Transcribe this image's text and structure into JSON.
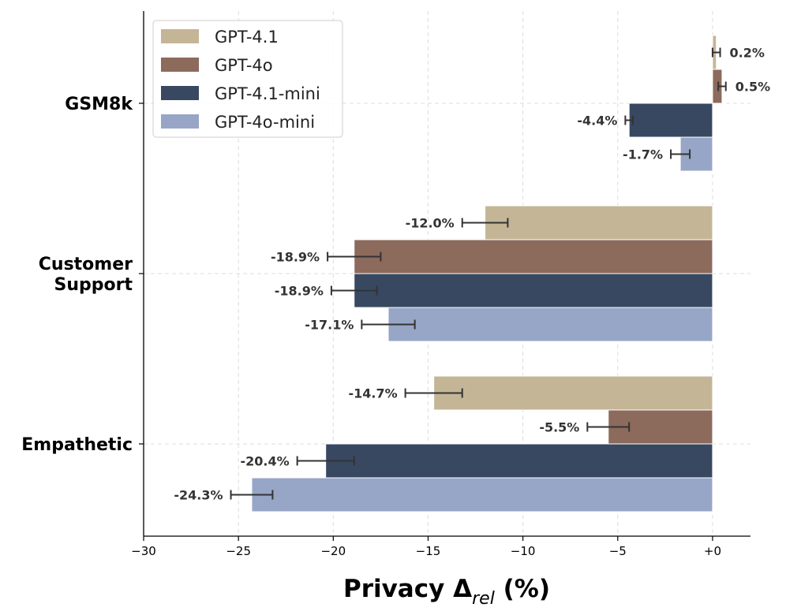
{
  "chart_data": {
    "type": "bar",
    "orientation": "horizontal",
    "categories": [
      "GSM8k",
      "Customer Support",
      "Empathetic"
    ],
    "category_display": [
      [
        "GSM8k"
      ],
      [
        "Customer",
        "Support"
      ],
      [
        "Empathetic"
      ]
    ],
    "series": [
      {
        "name": "GPT-4.1",
        "color": "#c4b596",
        "values": [
          0.2,
          -12.0,
          -14.7
        ],
        "labels": [
          "0.2%",
          "-12.0%",
          "-14.7%"
        ],
        "err": [
          0.2,
          1.2,
          1.5
        ]
      },
      {
        "name": "GPT-4o",
        "color": "#8c6a5c",
        "values": [
          0.5,
          -18.9,
          -5.5
        ],
        "labels": [
          "0.5%",
          "-18.9%",
          "-5.5%"
        ],
        "err": [
          0.2,
          1.4,
          1.1
        ]
      },
      {
        "name": "GPT-4.1-mini",
        "color": "#384861",
        "values": [
          -4.4,
          -18.9,
          -20.4
        ],
        "labels": [
          "-4.4%",
          "-18.9%",
          "-20.4%"
        ],
        "err": [
          0.2,
          1.2,
          1.5
        ]
      },
      {
        "name": "GPT-4o-mini",
        "color": "#97a6c6",
        "values": [
          -1.7,
          -17.1,
          -24.3
        ],
        "labels": [
          "-1.7%",
          "-17.1%",
          "-24.3%"
        ],
        "err": [
          0.5,
          1.4,
          1.1
        ]
      }
    ],
    "xlim": [
      -30,
      2
    ],
    "xticks": [
      -30,
      -25,
      -20,
      -15,
      -10,
      -5,
      0
    ],
    "xtick_labels": [
      "−30",
      "−25",
      "−20",
      "−15",
      "−10",
      "−5",
      "+0"
    ],
    "xlabel_main": "Privacy Δ",
    "xlabel_sub": "rel",
    "xlabel_tail": " (%)",
    "grid": true,
    "legend_position": "top-left"
  }
}
